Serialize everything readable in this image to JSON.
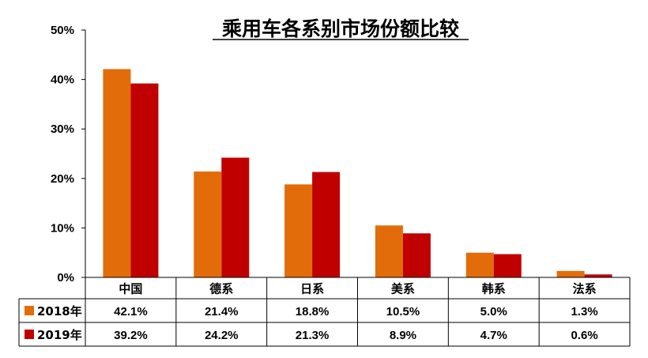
{
  "chart_data": {
    "type": "bar",
    "title": "乘用车各系别市场份额比较",
    "categories": [
      "中国",
      "德系",
      "日系",
      "美系",
      "韩系",
      "法系"
    ],
    "series": [
      {
        "name": "2018年",
        "color": "#E36C0A",
        "values": [
          42.1,
          21.4,
          18.8,
          10.5,
          5.0,
          1.3
        ],
        "labels": [
          "42.1%",
          "21.4%",
          "18.8%",
          "10.5%",
          "5.0%",
          "1.3%"
        ]
      },
      {
        "name": "2019年",
        "color": "#C00000",
        "values": [
          39.2,
          24.2,
          21.3,
          8.9,
          4.7,
          0.6
        ],
        "labels": [
          "39.2%",
          "24.2%",
          "21.3%",
          "8.9%",
          "4.7%",
          "0.6%"
        ]
      }
    ],
    "ylim": [
      0,
      50
    ],
    "yticks": [
      "0%",
      "10%",
      "20%",
      "30%",
      "40%",
      "50%"
    ],
    "grid": false,
    "legend": "data-table"
  }
}
